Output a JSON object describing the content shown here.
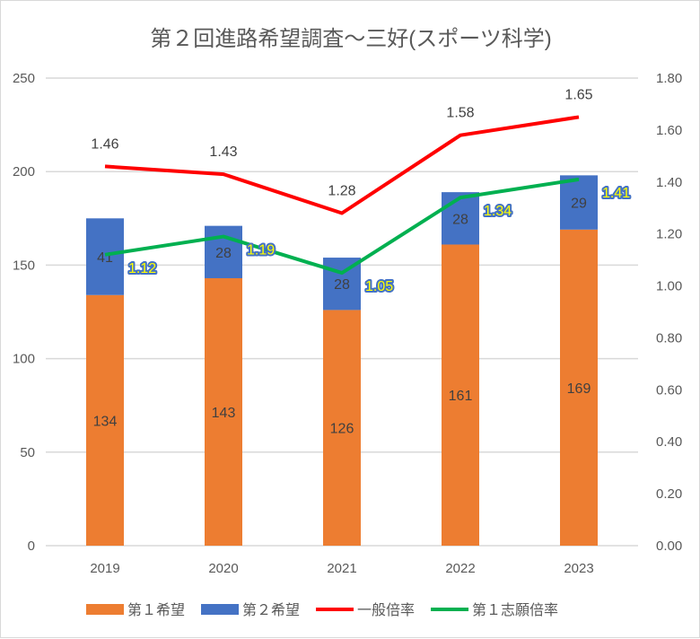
{
  "chart_data": {
    "type": "bar",
    "title": "第２回進路希望調査～三好(スポーツ科学)",
    "categories": [
      "2019",
      "2020",
      "2021",
      "2022",
      "2023"
    ],
    "series": [
      {
        "name": "第１希望",
        "kind": "stacked-bar",
        "axis": "left",
        "color": "#ED7D31",
        "values": [
          134,
          143,
          126,
          161,
          169
        ],
        "label_color": "#404040"
      },
      {
        "name": "第２希望",
        "kind": "stacked-bar",
        "axis": "left",
        "color": "#4472C4",
        "values": [
          41,
          28,
          28,
          28,
          29
        ],
        "label_color": "#404040"
      },
      {
        "name": "一般倍率",
        "kind": "line",
        "axis": "right",
        "color": "#FF0000",
        "values": [
          1.46,
          1.43,
          1.28,
          1.58,
          1.65
        ],
        "label_color": "#404040"
      },
      {
        "name": "第１志願倍率",
        "kind": "line",
        "axis": "right",
        "color": "#00B050",
        "values": [
          1.12,
          1.19,
          1.05,
          1.34,
          1.41
        ],
        "label_color": "#FFFF00"
      }
    ],
    "y_left": {
      "min": 0,
      "max": 250,
      "step": 50,
      "ticks": [
        "0",
        "50",
        "100",
        "150",
        "200",
        "250"
      ]
    },
    "y_right": {
      "min": 0,
      "max": 1.8,
      "step": 0.2,
      "ticks": [
        "0.00",
        "0.20",
        "0.40",
        "0.60",
        "0.80",
        "1.00",
        "1.20",
        "1.40",
        "1.60",
        "1.80"
      ]
    },
    "grid": true,
    "legend": "bottom"
  }
}
